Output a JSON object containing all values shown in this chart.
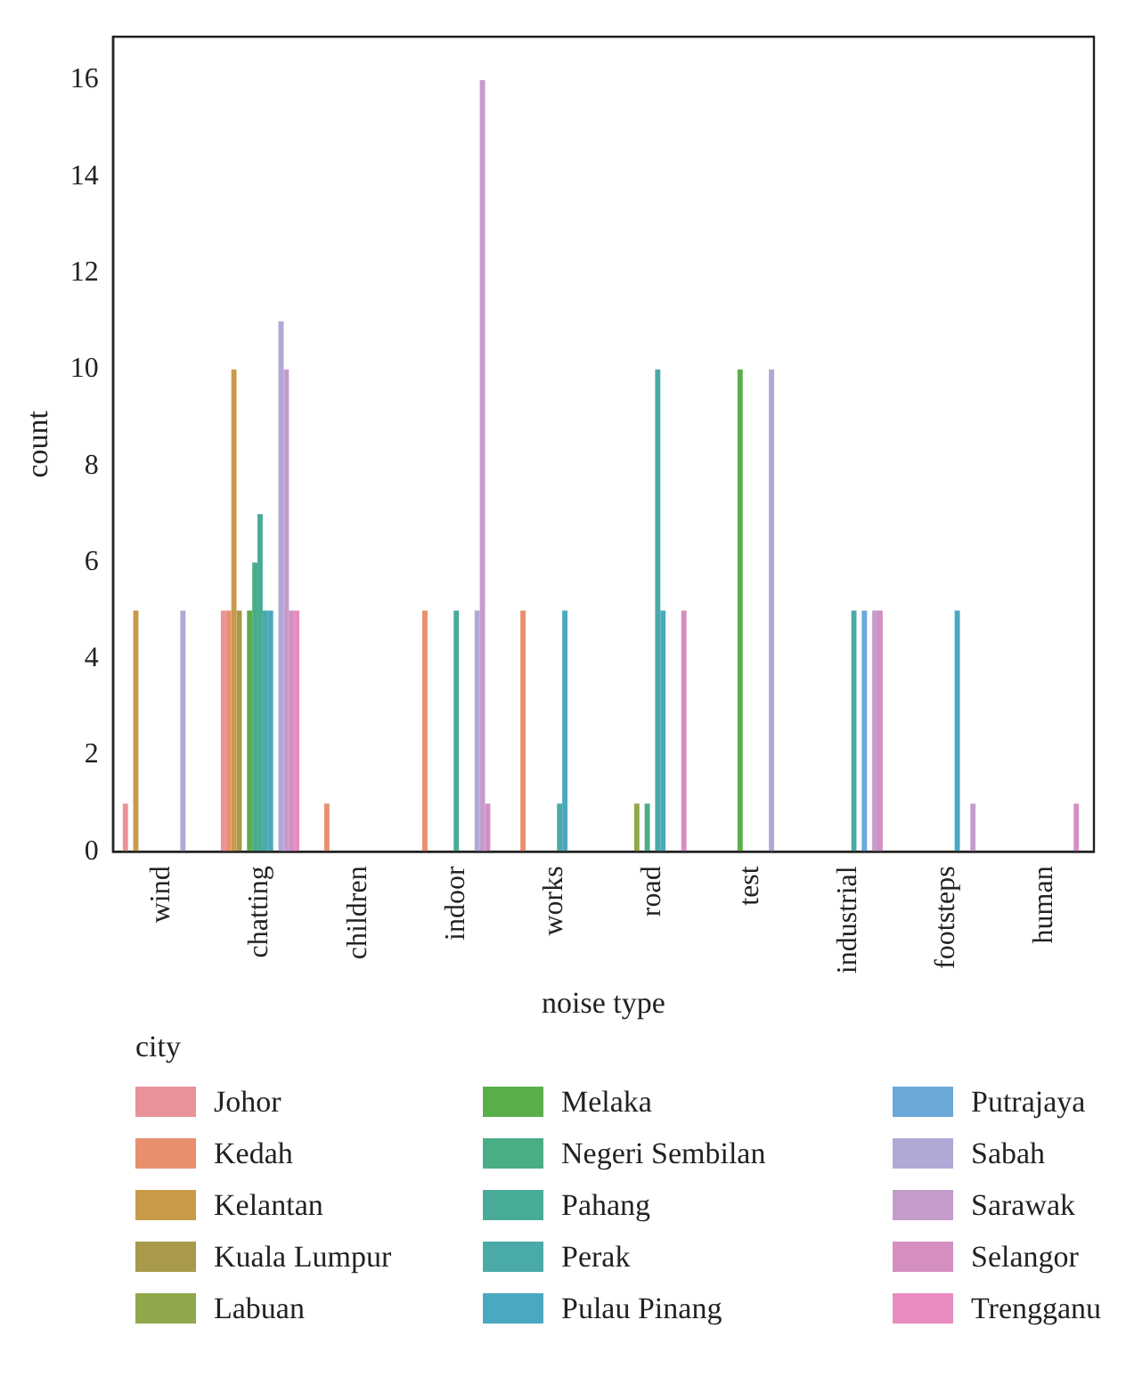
{
  "chart_data": {
    "type": "bar",
    "xlabel": "noise type",
    "ylabel": "count",
    "legend_title": "city",
    "legend": "bottom",
    "grid": false,
    "categories": [
      "wind",
      "chatting",
      "children",
      "indoor",
      "works",
      "road",
      "test",
      "industrial",
      "footsteps",
      "human"
    ],
    "ylim": [
      0,
      16.9
    ],
    "yticks": [
      0,
      2,
      4,
      6,
      8,
      10,
      12,
      14,
      16
    ],
    "series": [
      {
        "name": "Johor",
        "color": "#e8929a",
        "values": [
          1,
          5,
          0,
          0,
          0,
          0,
          0,
          0,
          0,
          0
        ]
      },
      {
        "name": "Kedah",
        "color": "#e8906e",
        "values": [
          0,
          5,
          1,
          5,
          5,
          0,
          0,
          0,
          0,
          0
        ]
      },
      {
        "name": "Kelantan",
        "color": "#c89a4a",
        "values": [
          5,
          10,
          0,
          0,
          0,
          0,
          0,
          0,
          0,
          0
        ]
      },
      {
        "name": "Kuala Lumpur",
        "color": "#a89a4a",
        "values": [
          0,
          5,
          0,
          0,
          0,
          0,
          0,
          0,
          0,
          0
        ]
      },
      {
        "name": "Labuan",
        "color": "#8fa84a",
        "values": [
          0,
          0,
          0,
          0,
          0,
          1,
          0,
          0,
          0,
          0
        ]
      },
      {
        "name": "Melaka",
        "color": "#5aae4a",
        "values": [
          0,
          5,
          0,
          0,
          0,
          0,
          10,
          0,
          0,
          0
        ]
      },
      {
        "name": "Negeri Sembilan",
        "color": "#4aae84",
        "values": [
          0,
          6,
          0,
          0,
          0,
          1,
          0,
          0,
          0,
          0
        ]
      },
      {
        "name": "Pahang",
        "color": "#48ab98",
        "values": [
          0,
          7,
          0,
          5,
          0,
          0,
          0,
          0,
          0,
          0
        ]
      },
      {
        "name": "Perak",
        "color": "#4aaaa8",
        "values": [
          0,
          5,
          0,
          0,
          1,
          10,
          0,
          5,
          0,
          0
        ]
      },
      {
        "name": "Pulau Pinang",
        "color": "#4aa8c0",
        "values": [
          0,
          5,
          0,
          0,
          5,
          5,
          0,
          0,
          5,
          0
        ]
      },
      {
        "name": "Putrajaya",
        "color": "#6aa8da",
        "values": [
          0,
          0,
          0,
          0,
          0,
          0,
          0,
          5,
          0,
          0
        ]
      },
      {
        "name": "Sabah",
        "color": "#b0a8d6",
        "values": [
          5,
          11,
          0,
          5,
          0,
          0,
          10,
          0,
          0,
          0
        ]
      },
      {
        "name": "Sarawak",
        "color": "#c49ccc",
        "values": [
          0,
          10,
          0,
          16,
          0,
          0,
          0,
          5,
          1,
          0
        ]
      },
      {
        "name": "Selangor",
        "color": "#d48fc0",
        "values": [
          0,
          5,
          0,
          1,
          0,
          5,
          0,
          5,
          0,
          1
        ]
      },
      {
        "name": "Trengganu",
        "color": "#e88cc0",
        "values": [
          0,
          5,
          0,
          0,
          0,
          0,
          0,
          0,
          0,
          0
        ]
      }
    ]
  }
}
